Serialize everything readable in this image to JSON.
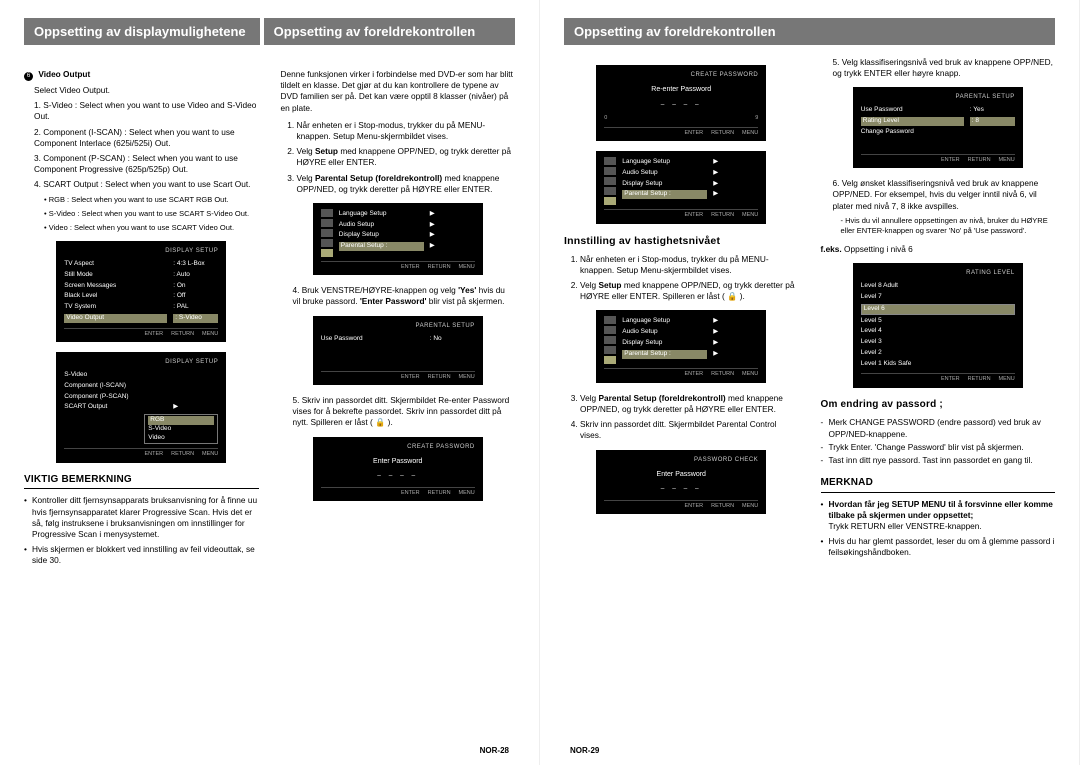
{
  "page_left": {
    "header_left": "Oppsetting av displaymulighetene",
    "header_right": "Oppsetting av foreldrekontrollen",
    "page_num": "NOR-28",
    "col1": {
      "section_num": "6",
      "section_title": "Video Output",
      "intro": "Select Video Output.",
      "items": [
        {
          "label": "1. S-Video :",
          "text": "Select when you want to use Video and S-Video Out."
        },
        {
          "label": "2. Component (I-SCAN) :",
          "text": "Select when you want to use Component Interlace (625i/525i) Out."
        },
        {
          "label": "3. Component (P-SCAN) :",
          "text": "Select when you want to use Component Progressive (625p/525p) Out."
        },
        {
          "label": "4. SCART Output :",
          "text": "Select when you want to use Scart Out."
        }
      ],
      "scart_sub": [
        {
          "label": "• RGB :",
          "text": "Select when you want to use SCART RGB Out."
        },
        {
          "label": "• S-Video :",
          "text": "Select when you want to use SCART S-Video Out."
        },
        {
          "label": "• Video :",
          "text": "Select when you want to use SCART Video Out."
        }
      ],
      "osd1": {
        "title": "DISPLAY SETUP",
        "rows": [
          {
            "label": "TV Aspect",
            "value": ": 4:3 L-Box"
          },
          {
            "label": "Still Mode",
            "value": ": Auto"
          },
          {
            "label": "Screen Messages",
            "value": ": On"
          },
          {
            "label": "Black Level",
            "value": ": Off"
          },
          {
            "label": "TV System",
            "value": ": PAL"
          },
          {
            "label": "Video Output",
            "value": ": S-Video",
            "hl": true
          }
        ],
        "foot": [
          "ENTER",
          "RETURN",
          "MENU"
        ]
      },
      "osd2": {
        "title": "DISPLAY SETUP",
        "rows": [
          {
            "label": "S-Video",
            "value": ""
          },
          {
            "label": "Component (I-SCAN)",
            "value": ""
          },
          {
            "label": "Component (P-SCAN)",
            "value": ""
          },
          {
            "label": "SCART Output",
            "value": "▶",
            "submenu": [
              "RGB",
              "S-Video",
              "Video"
            ]
          }
        ],
        "foot": [
          "ENTER",
          "RETURN",
          "MENU"
        ]
      },
      "note_title": "VIKTIG BEMERKNING",
      "notes": [
        "Kontroller ditt fjernsynsapparats bruksanvisning for å finne uu hvis fjernsynsapparatet klarer Progressive Scan. Hvis det er så, følg instruksene i bruksanvisningen om innstillinger for Progressive Scan i menysystemet.",
        "Hvis skjermen er blokkert ved innstilling av feil videouttak, se side 30."
      ]
    },
    "col2": {
      "intro": "Denne funksjonen virker i forbindelse med DVD-er som har blitt tildelt en klasse. Det gjør at du kan kontrollere de typene av DVD familien ser på. Det kan være opptil 8 klasser (nivåer) på en plate.",
      "steps1": [
        "Når enheten er i Stop-modus, trykker du på MENU-knappen. Setup Menu-skjermbildet vises.",
        "Velg <b>Setup</b> med knappene OPP/NED, og trykk deretter på HØYRE eller ENTER.",
        "Velg <b>Parental Setup (foreldrekontroll)</b> med knappene OPP/NED, og trykk deretter på HØYRE eller ENTER."
      ],
      "osd_setup": {
        "side_labels": [
          "Disc Menu",
          "",
          "Title Menu",
          "",
          "Setup"
        ],
        "rows": [
          {
            "label": "Language Setup",
            "value": "▶"
          },
          {
            "label": "Audio Setup",
            "value": "▶"
          },
          {
            "label": "Display Setup",
            "value": "▶"
          },
          {
            "label": "Parental Setup :",
            "value": "▶",
            "hl": true
          }
        ],
        "foot": [
          "ENTER",
          "RETURN",
          "MENU"
        ]
      },
      "step4": "Bruk VENSTRE/HØYRE-knappen og velg <b>'Yes'</b> hvis du vil bruke passord. <b>'Enter Password'</b> blir vist på skjermen.",
      "osd_parental": {
        "title": "PARENTAL SETUP",
        "rows": [
          {
            "label": "Use Password",
            "value": ": No"
          }
        ],
        "foot": [
          "ENTER",
          "RETURN",
          "MENU"
        ]
      },
      "step5": "Skriv inn passordet ditt. Skjermbildet Re-enter Password vises for å bekrefte passordet. Skriv inn passordet ditt på nytt. Spilleren er låst ( 🔒 ).",
      "osd_create": {
        "title": "CREATE PASSWORD",
        "line1": "Enter Password",
        "dashes": "– – – –",
        "foot": [
          "ENTER",
          "RETURN",
          "MENU"
        ]
      }
    }
  },
  "page_right": {
    "header": "Oppsetting av foreldrekontrollen",
    "page_num": "NOR-29",
    "col1": {
      "osd_reenter": {
        "title": "CREATE PASSWORD",
        "line1": "Re-enter Password",
        "dashes": "– – – –",
        "foot_icons": [
          "0",
          "9"
        ],
        "foot": [
          "ENTER",
          "RETURN",
          "MENU"
        ]
      },
      "osd_setup2": {
        "side_labels": [
          "Disc Menu",
          "",
          "Title Menu",
          "",
          "Setup"
        ],
        "rows": [
          {
            "label": "Language Setup",
            "value": "▶"
          },
          {
            "label": "Audio Setup",
            "value": "▶"
          },
          {
            "label": "Display Setup",
            "value": "▶"
          },
          {
            "label": "Parental Setup :",
            "value": "▶",
            "hl": true
          }
        ],
        "foot": [
          "ENTER",
          "RETURN",
          "MENU"
        ]
      },
      "subhead": "Innstilling av hastighetsnivået",
      "steps2": [
        "Når enheten er i Stop-modus, trykker du på MENU-knappen. Setup Menu-skjermbildet vises.",
        "Velg <b>Setup</b> med knappene OPP/NED, og trykk deretter på HØYRE eller ENTER. Spilleren er låst ( 🔒 )."
      ],
      "osd_setup3": {
        "side_labels": [
          "Disc Menu",
          "",
          "Title Menu",
          "",
          "Parental",
          "Setup"
        ],
        "rows": [
          {
            "label": "Language Setup",
            "value": "▶"
          },
          {
            "label": "Audio Setup",
            "value": "▶"
          },
          {
            "label": "Display Setup",
            "value": "▶"
          },
          {
            "label": "Parental Setup :",
            "value": "▶",
            "hl": true
          }
        ],
        "foot": [
          "ENTER",
          "RETURN",
          "MENU"
        ]
      },
      "steps3": [
        "Velg <b>Parental Setup (foreldrekontroll)</b> med knappene OPP/NED, og trykk deretter på HØYRE eller ENTER.",
        "Skriv inn passordet ditt. Skjermbildet Parental Control vises."
      ],
      "osd_pwcheck": {
        "title": "PASSWORD CHECK",
        "line1": "Enter Password",
        "dashes": "– – – –",
        "foot": [
          "ENTER",
          "RETURN",
          "MENU"
        ]
      }
    },
    "col2": {
      "step5": "Velg klassifiseringsnivå ved bruk av knappene OPP/NED, og trykk ENTER eller høyre knapp.",
      "osd_parental2": {
        "title": "PARENTAL SETUP",
        "rows": [
          {
            "label": "Use Password",
            "value": ": Yes"
          },
          {
            "label": "Rating Level",
            "value": ": 8",
            "hl": true
          },
          {
            "label": "Change Password",
            "value": ""
          }
        ],
        "foot": [
          "ENTER",
          "RETURN",
          "MENU"
        ]
      },
      "step6": "Velg ønsket klassifiseringsnivå ved bruk av knappene OPP/NED. For eksempel, hvis du velger inntil nivå 6, vil plater med nivå 7, 8 ikke avspilles.",
      "step6_sub": "Hvis du vil annullere oppsettingen av nivå, bruker du HØYRE eller ENTER-knappen og svarer 'No' på 'Use password'.",
      "example_label": "f.eks.",
      "example_text": "Oppsetting i nivå 6",
      "osd_rating": {
        "title": "RATING LEVEL",
        "rows": [
          {
            "label": "Level 8 Adult"
          },
          {
            "label": "Level 7"
          },
          {
            "label": "Level 6",
            "hl": true
          },
          {
            "label": "Level 5"
          },
          {
            "label": "Level 4"
          },
          {
            "label": "Level 3"
          },
          {
            "label": "Level 2"
          },
          {
            "label": "Level 1 Kids Safe"
          }
        ],
        "foot": [
          "ENTER",
          "RETURN",
          "MENU"
        ]
      },
      "pw_title": "Om endring av passord ;",
      "pw_items": [
        "Merk CHANGE PASSWORD (endre passord) ved bruk av OPP/NED-knappene.",
        "Trykk Enter. 'Change Password' blir vist på skjermen.",
        "Tast inn ditt nye passord. Tast inn passordet en gang til."
      ],
      "merknad_title": "MERKNAD",
      "merknad_q": "Hvordan får jeg SETUP MENU til å forsvinne eller komme tilbake på skjermen under oppsettet;",
      "merknad_a": "Trykk RETURN eller VENSTRE-knappen.",
      "merknad2": "Hvis du har glemt passordet, leser du om å glemme passord i feilsøkingshåndboken."
    }
  }
}
